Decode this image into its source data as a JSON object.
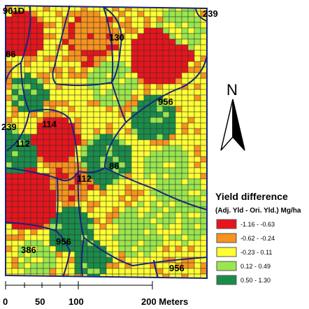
{
  "map": {
    "zone_labels": [
      "901D",
      "239",
      "130",
      "86",
      "956",
      "239",
      "114",
      "112",
      "86",
      "112",
      "956",
      "386",
      "956"
    ],
    "colors": {
      "class1": "#e8141c",
      "class2": "#f7931e",
      "class3": "#ffff33",
      "class4": "#99e64d",
      "class5": "#1a8c4a",
      "grid": "#333333",
      "boundary": "#1a237e"
    }
  },
  "legend": {
    "title": "Yield difference",
    "subtitle": "(Adj. Yld - Ori. Yld.) Mg/ha",
    "items": [
      {
        "label": "-1.16 - -0.63",
        "color": "#e8141c"
      },
      {
        "label": "-0.62 - -0.24",
        "color": "#f7931e"
      },
      {
        "label": "-0.23 - 0.11",
        "color": "#ffff33"
      },
      {
        "label": "0.12 - 0.49",
        "color": "#99e64d"
      },
      {
        "label": "0.50 - 1.30",
        "color": "#1a8c4a"
      }
    ]
  },
  "north_arrow": {
    "label": "N"
  },
  "scale_bar": {
    "ticks": [
      "0",
      "50",
      "100",
      "200 Meters"
    ]
  }
}
